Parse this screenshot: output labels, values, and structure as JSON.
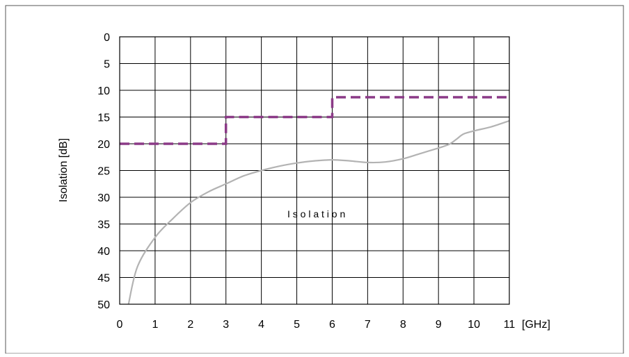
{
  "chart_data": {
    "type": "line",
    "title": "",
    "xlabel": "",
    "x_unit_label": "[GHz]",
    "ylabel": "Isolation [dB]",
    "xlim": [
      0,
      11
    ],
    "ylim": [
      0,
      50
    ],
    "y_inverted": true,
    "grid": true,
    "x_ticks": [
      "0",
      "1",
      "2",
      "3",
      "4",
      "5",
      "6",
      "7",
      "8",
      "9",
      "10",
      "11"
    ],
    "y_ticks": [
      "0",
      "5",
      "10",
      "15",
      "20",
      "25",
      "30",
      "35",
      "40",
      "45",
      "50"
    ],
    "annotation": "I s o l a t i o n",
    "colors": {
      "spec": "#8b3a87",
      "measured": "#b3b3b3",
      "grid": "#000000"
    },
    "series": [
      {
        "style": "dashed-step",
        "color": "#8b3a87",
        "x": [
          0,
          3,
          3,
          6,
          6,
          11
        ],
        "y": [
          20,
          20,
          15,
          15,
          11.3,
          11.3
        ]
      },
      {
        "style": "solid",
        "color": "#b3b3b3",
        "x": [
          0.25,
          0.5,
          1.0,
          1.5,
          2.0,
          2.5,
          3.0,
          3.5,
          4.0,
          4.5,
          5.0,
          5.5,
          6.0,
          6.5,
          7.0,
          7.5,
          8.0,
          8.5,
          9.0,
          9.3,
          9.5,
          9.7,
          10.0,
          10.5,
          11.0
        ],
        "y": [
          50,
          43,
          37.5,
          34,
          31,
          29,
          27.5,
          26,
          25,
          24.2,
          23.6,
          23.2,
          23,
          23.2,
          23.5,
          23.4,
          22.8,
          21.8,
          20.8,
          20.1,
          19.2,
          18.2,
          17.6,
          16.8,
          15.7
        ]
      }
    ]
  }
}
